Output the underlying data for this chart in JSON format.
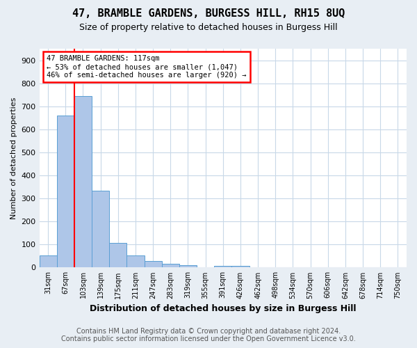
{
  "title": "47, BRAMBLE GARDENS, BURGESS HILL, RH15 8UQ",
  "subtitle": "Size of property relative to detached houses in Burgess Hill",
  "xlabel": "Distribution of detached houses by size in Burgess Hill",
  "ylabel": "Number of detached properties",
  "footer1": "Contains HM Land Registry data © Crown copyright and database right 2024.",
  "footer2": "Contains public sector information licensed under the Open Government Licence v3.0.",
  "bin_labels": [
    "31sqm",
    "67sqm",
    "103sqm",
    "139sqm",
    "175sqm",
    "211sqm",
    "247sqm",
    "283sqm",
    "319sqm",
    "355sqm",
    "391sqm",
    "426sqm",
    "462sqm",
    "498sqm",
    "534sqm",
    "570sqm",
    "606sqm",
    "642sqm",
    "678sqm",
    "714sqm",
    "750sqm"
  ],
  "bar_heights": [
    52,
    660,
    745,
    335,
    108,
    52,
    27,
    15,
    11,
    0,
    8,
    8,
    0,
    0,
    0,
    0,
    0,
    0,
    0,
    0,
    0
  ],
  "bar_color": "#aec6e8",
  "bar_edge_color": "#5a9fd4",
  "red_line_x": 1.5,
  "annotation_text": "47 BRAMBLE GARDENS: 117sqm\n← 53% of detached houses are smaller (1,047)\n46% of semi-detached houses are larger (920) →",
  "annotation_box_color": "white",
  "annotation_box_edge_color": "red",
  "red_line_color": "red",
  "ylim": [
    0,
    950
  ],
  "yticks": [
    0,
    100,
    200,
    300,
    400,
    500,
    600,
    700,
    800,
    900
  ],
  "background_color": "#e8eef4",
  "plot_background": "white",
  "grid_color": "#c8d8e8",
  "title_fontsize": 11,
  "subtitle_fontsize": 9,
  "xlabel_fontsize": 9,
  "ylabel_fontsize": 8,
  "tick_fontsize": 8,
  "xtick_fontsize": 7,
  "footer_fontsize": 7
}
